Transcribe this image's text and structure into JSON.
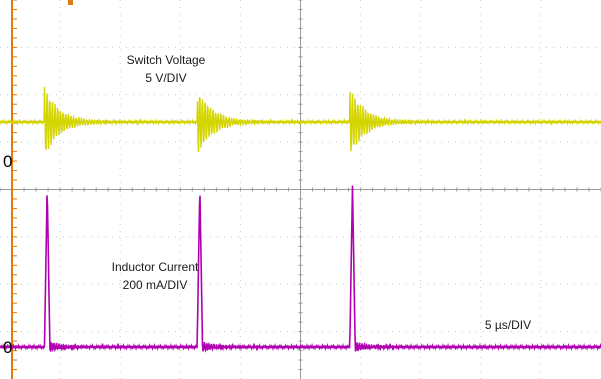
{
  "chart_data": {
    "type": "line",
    "title": "",
    "time_per_div_label": "5 µs/DIV",
    "grid": true,
    "divisions": {
      "horizontal": 10,
      "vertical": 8
    },
    "x": {
      "unit": "µs",
      "range": [
        0,
        50
      ],
      "trigger_positions": [
        3.7,
        16.4,
        29.1
      ]
    },
    "series": [
      {
        "name": "Switch Voltage",
        "scale_label": "5 V/DIV",
        "color": "#d4d400",
        "zero_label": "0",
        "baseline_div": 2.0,
        "step_div": 0.2,
        "spike_peak_div": 4.5,
        "spike_trough_div": 0.6,
        "ring_decay_us": 1.3,
        "ring_period_us": 0.22
      },
      {
        "name": "Inductor Current",
        "scale_label": "200 mA/DIV",
        "color": "#b000b0",
        "zero_label": "0",
        "baseline_div": 0.0,
        "spike_peak_div": 3.4,
        "spike_trough_div": -0.3,
        "ring_decay_us": 1.1,
        "ring_period_us": 0.2
      }
    ]
  }
}
